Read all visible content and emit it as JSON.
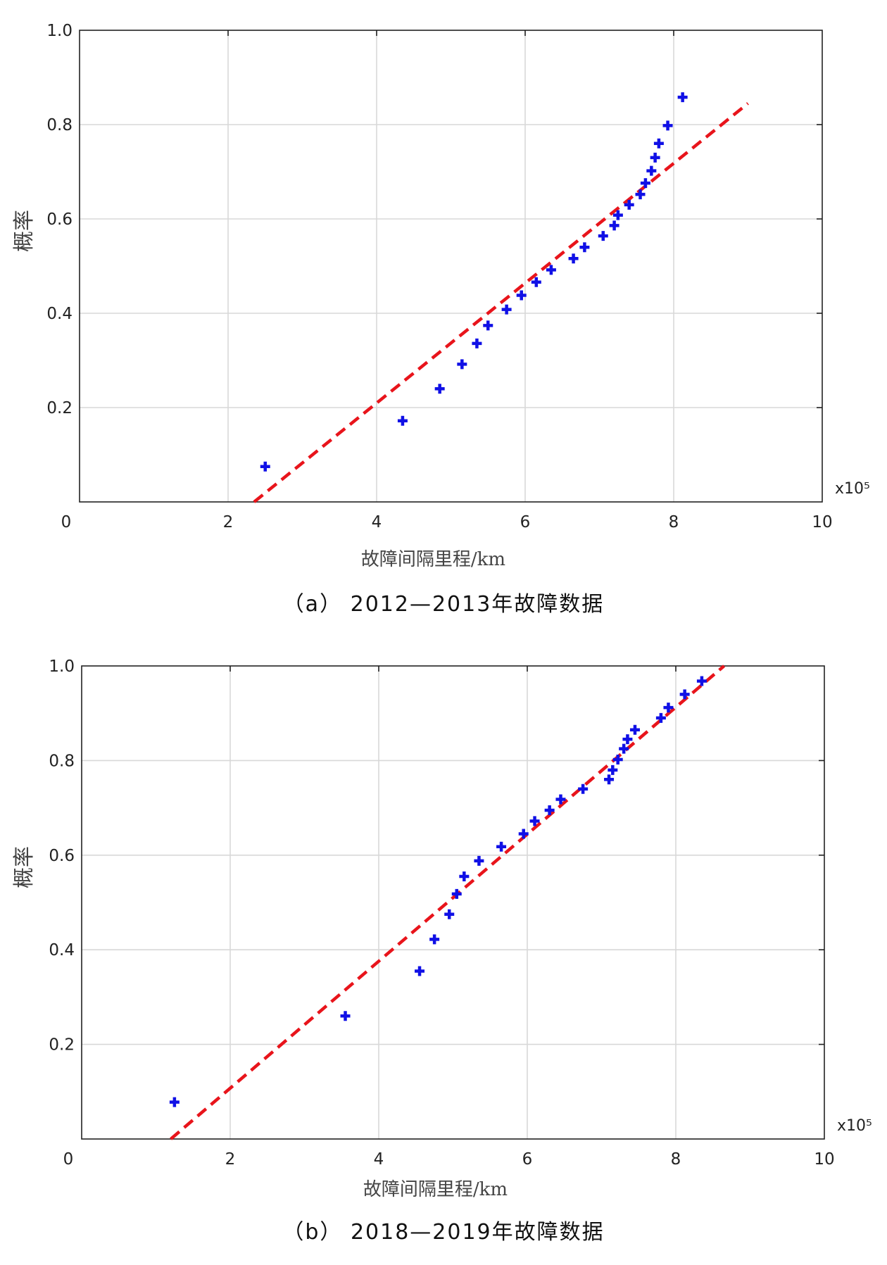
{
  "chart_data": [
    {
      "type": "scatter",
      "caption": "（a） 2012—2013年故障数据",
      "xlabel": "故障间隔里程/km",
      "ylabel": "概率",
      "x_multiplier": "x10⁵",
      "xlim": [
        0,
        10
      ],
      "ylim": [
        0,
        1.0
      ],
      "x_ticks": [
        "0",
        "2",
        "4",
        "6",
        "8",
        "10"
      ],
      "y_ticks": [
        "0.2",
        "0.4",
        "0.6",
        "0.8",
        "1.0"
      ],
      "grid": true,
      "points": {
        "x": [
          2.5,
          4.35,
          4.85,
          5.15,
          5.35,
          5.5,
          5.75,
          5.95,
          6.15,
          6.35,
          6.65,
          6.8,
          7.05,
          7.2,
          7.25,
          7.4,
          7.55,
          7.62,
          7.7,
          7.75,
          7.8,
          7.92,
          8.12
        ],
        "y": [
          0.075,
          0.172,
          0.24,
          0.292,
          0.336,
          0.374,
          0.408,
          0.438,
          0.466,
          0.492,
          0.516,
          0.54,
          0.564,
          0.586,
          0.608,
          0.63,
          0.652,
          0.676,
          0.702,
          0.73,
          0.76,
          0.798,
          0.858
        ]
      },
      "fit_line": {
        "x": [
          2.35,
          9.0
        ],
        "y": [
          0.0,
          0.845
        ],
        "color": "#e8141b"
      },
      "marker_color": "#1010e6"
    },
    {
      "type": "scatter",
      "caption": "（b） 2018—2019年故障数据",
      "xlabel": "故障间隔里程/km",
      "ylabel": "概率",
      "x_multiplier": "x10⁵",
      "xlim": [
        0,
        10
      ],
      "ylim": [
        0,
        1.0
      ],
      "x_ticks": [
        "0",
        "2",
        "4",
        "6",
        "8",
        "10"
      ],
      "y_ticks": [
        "0.2",
        "0.4",
        "0.6",
        "0.8",
        "1.0"
      ],
      "grid": true,
      "points": {
        "x": [
          1.25,
          3.55,
          4.55,
          4.75,
          4.95,
          5.05,
          5.15,
          5.35,
          5.65,
          5.95,
          6.1,
          6.3,
          6.45,
          6.75,
          7.1,
          7.15,
          7.22,
          7.3,
          7.35,
          7.45,
          7.8,
          7.9,
          8.12,
          8.35
        ],
        "y": [
          0.078,
          0.26,
          0.355,
          0.422,
          0.475,
          0.518,
          0.555,
          0.588,
          0.618,
          0.645,
          0.672,
          0.695,
          0.718,
          0.74,
          0.76,
          0.78,
          0.802,
          0.825,
          0.845,
          0.865,
          0.89,
          0.912,
          0.94,
          0.968
        ]
      },
      "fit_line": {
        "x": [
          1.2,
          8.65
        ],
        "y": [
          0.0,
          1.0
        ],
        "color": "#e8141b"
      },
      "marker_color": "#1010e6"
    }
  ]
}
